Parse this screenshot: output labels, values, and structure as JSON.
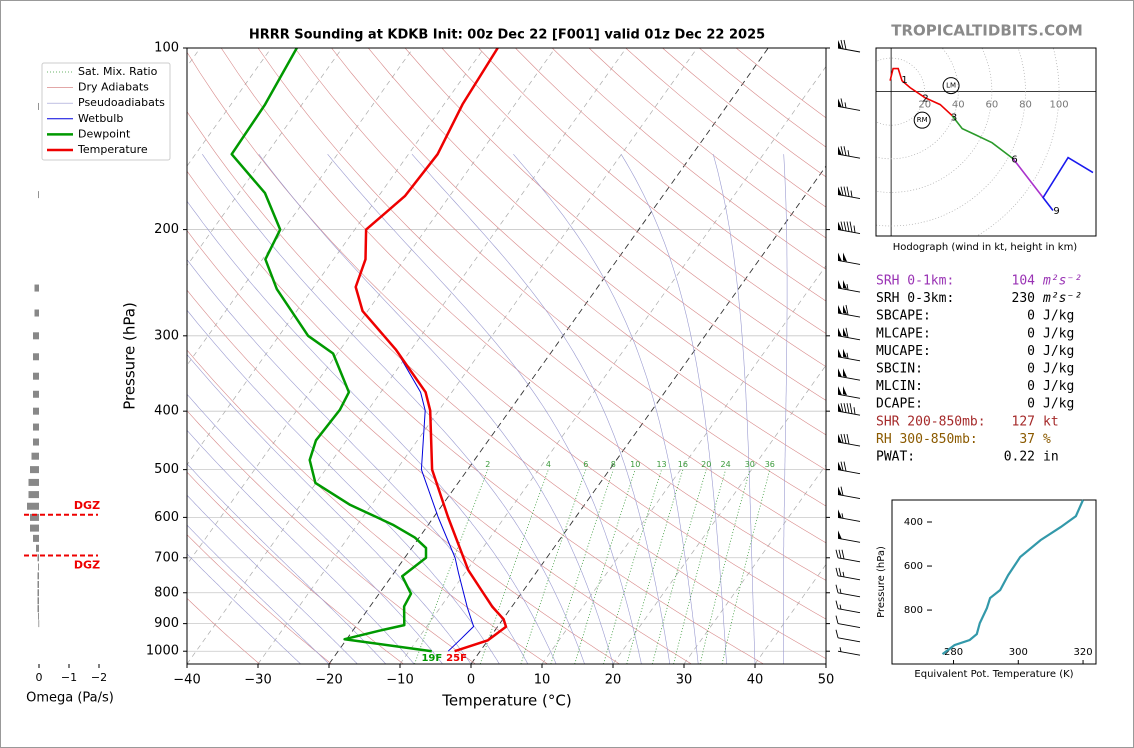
{
  "watermark": "TROPICALTIDBITS.COM",
  "parameters": [
    {
      "label": "SRH 0-1km:",
      "value": 104,
      "unit": "m²s⁻²",
      "color": "#9932b4"
    },
    {
      "label": "SRH 0-3km:",
      "value": 230,
      "unit": "m²s⁻²",
      "color": "#000000"
    },
    {
      "label": "SBCAPE:",
      "value": 0,
      "unit": "J/kg",
      "color": "#000000"
    },
    {
      "label": "MLCAPE:",
      "value": 0,
      "unit": "J/kg",
      "color": "#000000"
    },
    {
      "label": "MUCAPE:",
      "value": 0,
      "unit": "J/kg",
      "color": "#000000"
    },
    {
      "label": "SBCIN:",
      "value": 0,
      "unit": "J/kg",
      "color": "#000000"
    },
    {
      "label": "MLCIN:",
      "value": 0,
      "unit": "J/kg",
      "color": "#000000"
    },
    {
      "label": "DCAPE:",
      "value": 0,
      "unit": "J/kg",
      "color": "#000000"
    },
    {
      "label": "SHR 200-850mb:",
      "value": 127,
      "unit": "kt",
      "color": "#a52a2a"
    },
    {
      "label": "RH 300-850mb:",
      "value": 37,
      "unit": "%",
      "color": "#8b5a00"
    },
    {
      "label": "PWAT:",
      "value": 0.22,
      "unit": "in",
      "color": "#000000"
    }
  ],
  "chart_data": [
    {
      "type": "skewt",
      "title": "HRRR Sounding at KDKB Init: 00z Dec 22 [F001] valid 01z Dec 22 2025",
      "xlabel": "Temperature (°C)",
      "ylabel": "Pressure (hPa)",
      "xlim": [
        -40,
        50
      ],
      "xticks": [
        {
          "value": -40,
          "label": "−40"
        },
        {
          "value": -30,
          "label": "−30"
        },
        {
          "value": -20,
          "label": "−20"
        },
        {
          "value": -10,
          "label": "−10"
        },
        0,
        10,
        20,
        30,
        40,
        50
      ],
      "ylim": [
        1050,
        100
      ],
      "ylog": true,
      "yticks": [
        100,
        200,
        300,
        400,
        500,
        600,
        700,
        800,
        900,
        1000
      ],
      "grid": true,
      "legend": "upper left",
      "legend_items": [
        {
          "name": "Sat. Mix. Ratio",
          "color": "#3a9a3a"
        },
        {
          "name": "Dry Adiabats",
          "color": "#d88a8a"
        },
        {
          "name": "Pseudoadiabats",
          "color": "#9a9ad0"
        }
      ],
      "mixing_ratio_labels": [
        2,
        4,
        6,
        8,
        10,
        13,
        16,
        20,
        24,
        30,
        36
      ],
      "series": [
        {
          "name": "Wetbulb",
          "color": "#0000dd",
          "pressure": [
            1000,
            952,
            910,
            846,
            742,
            700,
            599,
            500,
            399,
            372,
            316,
            273
          ],
          "values": [
            -4.5,
            -3.9,
            -3.4,
            -6.2,
            -10.9,
            -12.9,
            -19.4,
            -26.5,
            -31.9,
            -34.4,
            -42.2,
            -50.7
          ]
        },
        {
          "name": "Dewpoint",
          "color": "#009900",
          "surface_label": "19F",
          "pressure": [
            1000,
            955,
            925,
            905,
            843,
            803,
            751,
            700,
            674,
            648,
            617,
            572,
            526,
            482,
            447,
            398,
            372,
            321,
            300,
            251,
            224,
            200,
            174,
            150,
            124,
            100
          ],
          "values": [
            -6.8,
            -20.3,
            -16.3,
            -13.3,
            -15.2,
            -15.5,
            -18.5,
            -17,
            -18,
            -20.6,
            -25,
            -33,
            -40.1,
            -43.2,
            -44.3,
            -44,
            -44.5,
            -50.6,
            -55.9,
            -65,
            -69.6,
            -70.5,
            -76.3,
            -84.9,
            -85.2,
            -86.4
          ]
        },
        {
          "name": "Temperature",
          "color": "#ee0000",
          "surface_label": "25F",
          "pressure": [
            1000,
            959,
            911,
            885,
            843,
            734,
            599,
            500,
            399,
            372,
            316,
            273,
            249,
            224,
            200,
            176,
            150,
            124,
            100
          ],
          "values": [
            -3.6,
            0.0,
            1.2,
            0.1,
            -2.8,
            -9.8,
            -18,
            -25,
            -31.2,
            -33.7,
            -42.2,
            -50.7,
            -54.1,
            -55.5,
            -58.4,
            -56.3,
            -55.9,
            -57.4,
            -58.1
          ]
        }
      ],
      "wind_pressure": [
        100,
        125,
        150,
        175,
        200,
        225,
        250,
        275,
        300,
        325,
        350,
        375,
        400,
        450,
        500,
        550,
        600,
        650,
        700,
        750,
        800,
        850,
        900,
        950,
        1000
      ],
      "wind_speed": [
        70,
        65,
        75,
        85,
        95,
        100,
        105,
        110,
        110,
        105,
        100,
        100,
        95,
        80,
        70,
        60,
        55,
        50,
        30,
        25,
        15,
        15,
        10,
        10,
        5
      ]
    },
    {
      "type": "bar",
      "orientation": "horizontal",
      "xlabel": "Omega (Pa/s)",
      "xlim": [
        0.5,
        -2.4
      ],
      "xticks": [
        0,
        {
          "value": -1,
          "label": "−1"
        },
        {
          "value": -2,
          "label": "−2"
        }
      ],
      "ylim": [
        1050,
        100
      ],
      "ylog": true,
      "color": "#888888",
      "pressure": [
        125,
        175,
        250,
        275,
        300,
        325,
        350,
        375,
        400,
        425,
        450,
        475,
        500,
        525,
        550,
        575,
        600,
        625,
        650,
        675,
        700,
        725,
        750,
        775,
        800,
        825,
        850,
        875,
        900
      ],
      "values": [
        0.03,
        0.03,
        0.15,
        0.15,
        0.2,
        0.2,
        0.2,
        0.2,
        0.2,
        0.2,
        0.2,
        0.25,
        0.3,
        0.35,
        0.35,
        0.4,
        0.3,
        0.3,
        0.2,
        0.1,
        0.05,
        0.03,
        0.05,
        0.05,
        0.05,
        0.05,
        0.05,
        0.03,
        0.02
      ],
      "dgz": {
        "label": "DGZ",
        "pressure": [
          594,
          694
        ],
        "color": "#ee0000"
      }
    },
    {
      "type": "hodograph",
      "caption": "Hodograph (wind in kt, height in km)",
      "xlim": [
        -9,
        122
      ],
      "ylim": [
        -86,
        26
      ],
      "rings": [
        20,
        40,
        60,
        80,
        100
      ],
      "series": [
        {
          "color": "#ee0000",
          "u": [
            -0.6,
            1.2,
            4.2,
            6.5,
            11.3,
            20.2,
            29.2,
            36.3
          ],
          "v": [
            6.5,
            13.7,
            13.7,
            6.5,
            2.4,
            -3.6,
            -7.7,
            -14.3
          ]
        },
        {
          "color": "#2a9a2a",
          "u": [
            36.3,
            42.3,
            50,
            60.1,
            67.9,
            72.6
          ],
          "v": [
            -14.3,
            -22,
            -25.6,
            -30.4,
            -36.3,
            -39.9
          ]
        },
        {
          "color": "#aa33cc",
          "u": [
            72.6,
            82.7,
            90.5
          ],
          "v": [
            -39.9,
            -53,
            -63.1
          ]
        },
        {
          "color": "#1a1aee",
          "u": [
            90.5,
            96.4,
            90.5,
            105.4,
            120.2
          ],
          "v": [
            -63.1,
            -70.8,
            -63.1,
            -39.3,
            -48.2
          ]
        }
      ],
      "height_labels": [
        {
          "label": "1",
          "u": 8,
          "v": 7
        },
        {
          "label": "2",
          "u": 20.5,
          "v": -4
        },
        {
          "label": "3",
          "u": 37.5,
          "v": -15.5
        },
        {
          "label": "6",
          "u": 73.5,
          "v": -40.5
        },
        {
          "label": "9",
          "u": 98.5,
          "v": -71
        }
      ],
      "storm_motion": [
        {
          "label": "LM",
          "u": 35.7,
          "v": 3.6
        },
        {
          "label": "RM",
          "u": 18.5,
          "v": -17
        }
      ]
    },
    {
      "type": "line",
      "xlabel": "Equivalent Pot. Temperature (K)",
      "ylabel": "Pressure (hPa)",
      "xlim": [
        261,
        324
      ],
      "xticks": [
        280,
        300,
        320
      ],
      "ylim": [
        1045,
        300
      ],
      "yticks": [
        400,
        600,
        800
      ],
      "color": "#3399aa",
      "pressure": [
        300,
        373,
        423,
        482,
        559,
        641,
        709,
        745,
        791,
        859,
        909,
        936,
        959,
        1000
      ],
      "values": [
        320,
        317.8,
        313.1,
        306.9,
        300.6,
        296.9,
        294.4,
        291.3,
        290.3,
        288.1,
        287.2,
        285,
        280.3,
        276.6
      ]
    }
  ]
}
